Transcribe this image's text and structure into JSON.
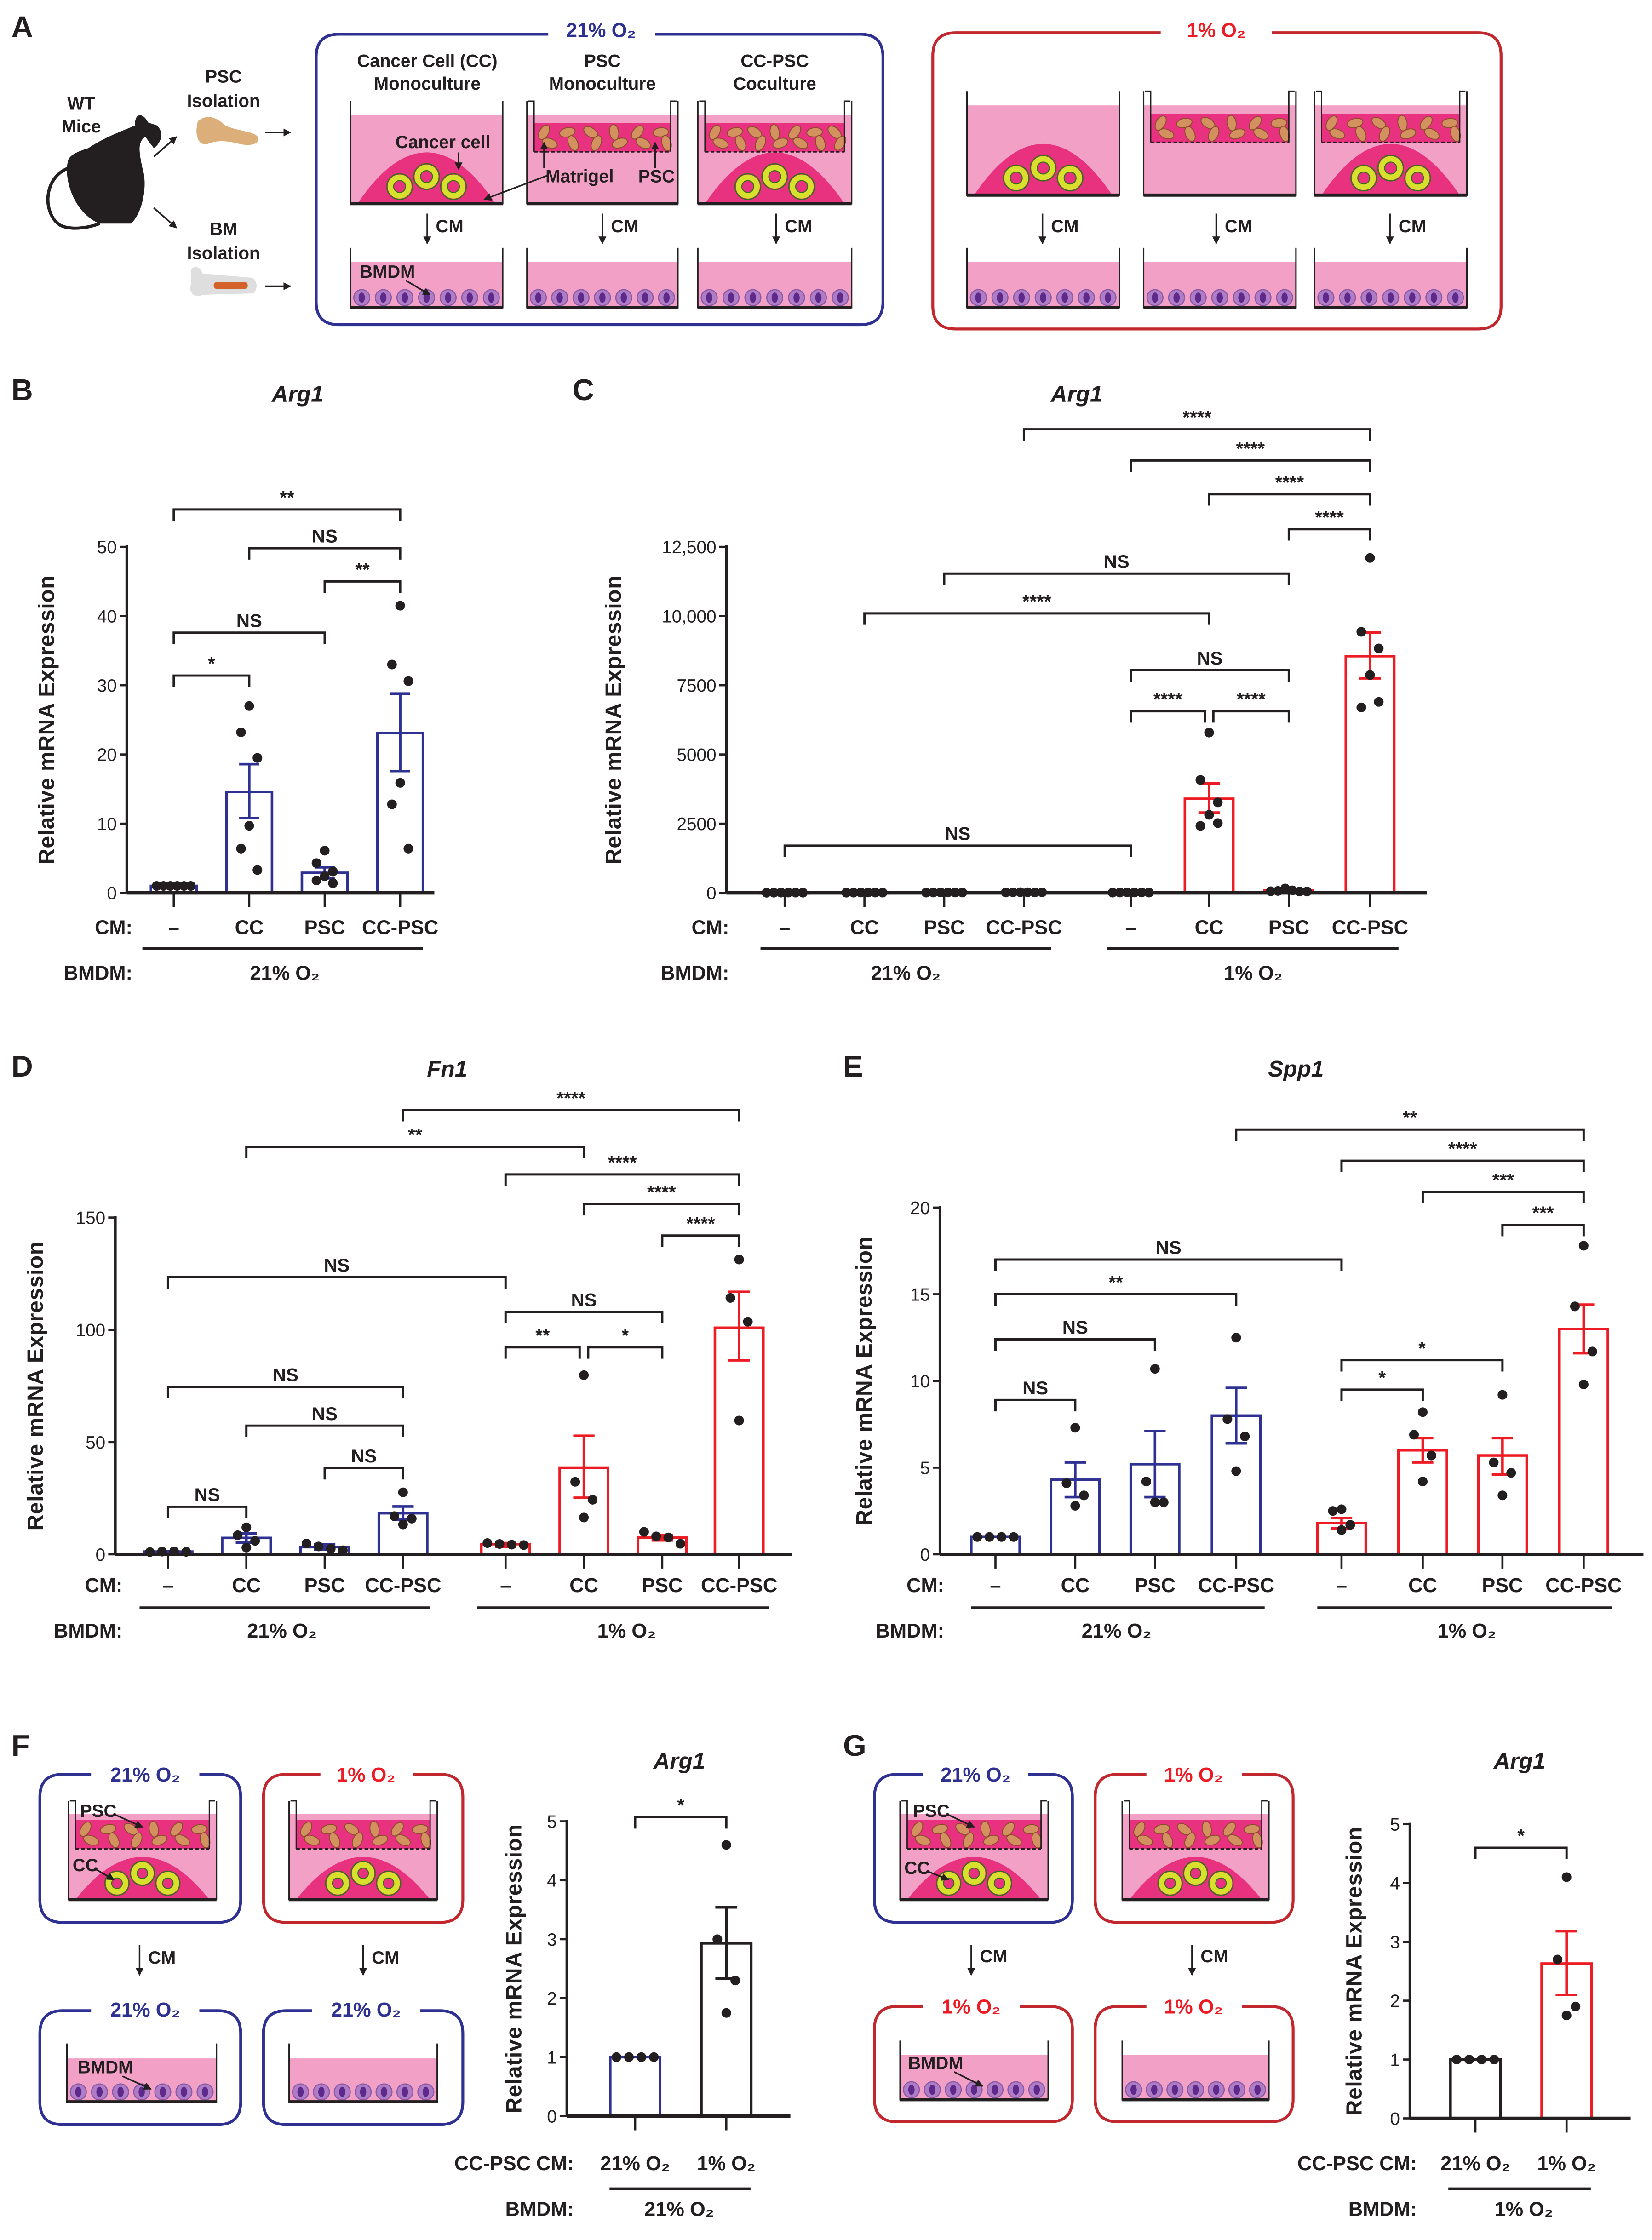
{
  "colors": {
    "normoxia": "#2e3192",
    "hypoxia": "#ed1c24",
    "hypoxia_box": "#c1272d",
    "medium": "#f3a0c6",
    "matrigel": "#e8317f",
    "organoid_ring": "#d7e02c",
    "organoid_edge": "#3a6b1f",
    "psc_cell": "#d3915f",
    "bmdm_cell": "#b07cc6",
    "bmdm_nucleus": "#5d2a8c"
  },
  "panel_a": {
    "label": "A",
    "mouse_label": [
      "WT",
      "Mice"
    ],
    "psc_isolation": [
      "PSC",
      "Isolation"
    ],
    "bm_isolation": [
      "BM",
      "Isolation"
    ],
    "normoxia_title": "21% O₂",
    "hypoxia_title": "1% O₂",
    "columns": [
      [
        "Cancer Cell (CC)",
        "Monoculture"
      ],
      [
        "PSC",
        "Monoculture"
      ],
      [
        "CC-PSC",
        "Coculture"
      ]
    ],
    "cm_label": "CM",
    "annotations": {
      "cancer_cell": "Cancer cell",
      "matrigel": "Matrigel",
      "psc": "PSC",
      "bmdm": "BMDM"
    }
  },
  "panel_f": {
    "label": "F",
    "top_titles": [
      "21% O₂",
      "1% O₂"
    ],
    "bottom_titles": [
      "21% O₂",
      "21% O₂"
    ],
    "cm_label": "CM",
    "annotations": {
      "psc": "PSC",
      "cc": "CC",
      "bmdm": "BMDM"
    }
  },
  "panel_g": {
    "label": "G",
    "top_titles": [
      "21% O₂",
      "1% O₂"
    ],
    "bottom_titles": [
      "1% O₂",
      "1% O₂"
    ],
    "cm_label": "CM",
    "annotations": {
      "psc": "PSC",
      "cc": "CC",
      "bmdm": "BMDM"
    }
  },
  "chart_data": [
    {
      "label": "B",
      "type": "bar",
      "title": "Arg1",
      "ylabel": "Relative mRNA Expression",
      "ylim": [
        0,
        50
      ],
      "yticks": [
        0,
        10,
        20,
        30,
        40,
        50
      ],
      "ytick_labels": [
        "0",
        "10",
        "20",
        "30",
        "40",
        "50"
      ],
      "row_labels": [
        "CM:",
        "BMDM:"
      ],
      "categories": [
        "–",
        "CC",
        "PSC",
        "CC-PSC"
      ],
      "groups": [
        "21% O₂"
      ],
      "bar_colors": [
        "#2e3192",
        "#2e3192",
        "#2e3192",
        "#2e3192"
      ],
      "values": [
        1.0,
        14.6,
        2.9,
        23.1
      ],
      "sem": [
        [
          1.0,
          1.0
        ],
        [
          10.8,
          18.6
        ],
        [
          2.1,
          3.7
        ],
        [
          17.6,
          28.8
        ]
      ],
      "points": [
        [
          1,
          1,
          1,
          1,
          1,
          1
        ],
        [
          27.0,
          23.2,
          19.5,
          9.7,
          6.4,
          3.3
        ],
        [
          6.1,
          4.3,
          3.1,
          2.4,
          1.8,
          1.4
        ],
        [
          41.5,
          33.0,
          30.6,
          15.9,
          12.8,
          6.4
        ]
      ],
      "comparisons": [
        {
          "pair": [
            0,
            3
          ],
          "label": "**"
        },
        {
          "pair": [
            1,
            3
          ],
          "label": "NS"
        },
        {
          "pair": [
            2,
            3
          ],
          "label": "**"
        },
        {
          "pair": [
            0,
            2
          ],
          "label": "NS"
        },
        {
          "pair": [
            0,
            1
          ],
          "label": "*"
        }
      ]
    },
    {
      "label": "C",
      "type": "bar",
      "title": "Arg1",
      "ylabel": "Relative mRNA Expression",
      "ylim": [
        0,
        12500
      ],
      "yticks": [
        0,
        2500,
        5000,
        7500,
        10000,
        12500
      ],
      "ytick_labels": [
        "0",
        "2500",
        "5000",
        "7500",
        "10,000",
        "12,500"
      ],
      "row_labels": [
        "CM:",
        "BMDM:"
      ],
      "categories": [
        "–",
        "CC",
        "PSC",
        "CC-PSC",
        "–",
        "CC",
        "PSC",
        "CC-PSC"
      ],
      "groups": [
        "21% O₂",
        "1% O₂"
      ],
      "bar_colors": [
        "#2e3192",
        "#2e3192",
        "#2e3192",
        "#2e3192",
        "#ed1c24",
        "#ed1c24",
        "#ed1c24",
        "#ed1c24"
      ],
      "values": [
        10,
        12,
        15,
        20,
        15,
        3400,
        80,
        8550
      ],
      "sem": [
        [
          10,
          10
        ],
        [
          12,
          12
        ],
        [
          15,
          15
        ],
        [
          20,
          20
        ],
        [
          15,
          15
        ],
        [
          2900,
          3950
        ],
        [
          60,
          100
        ],
        [
          7750,
          9400
        ]
      ],
      "points": [
        [
          5,
          8,
          10,
          12,
          10,
          8
        ],
        [
          8,
          10,
          14,
          15,
          12,
          10
        ],
        [
          10,
          14,
          18,
          16,
          15,
          14
        ],
        [
          15,
          20,
          25,
          22,
          18,
          20
        ],
        [
          10,
          14,
          20,
          15,
          16,
          12
        ],
        [
          5790,
          4080,
          3270,
          2820,
          2420,
          2520
        ],
        [
          60,
          70,
          160,
          90,
          50,
          50
        ],
        [
          12100,
          9430,
          8830,
          7870,
          6700,
          6900
        ]
      ],
      "comparisons": [
        {
          "pair": [
            3,
            7
          ],
          "label": "****"
        },
        {
          "pair": [
            4,
            7
          ],
          "label": "****"
        },
        {
          "pair": [
            5,
            7
          ],
          "label": "****"
        },
        {
          "pair": [
            6,
            7
          ],
          "label": "****"
        },
        {
          "pair": [
            2,
            6
          ],
          "label": "NS"
        },
        {
          "pair": [
            1,
            5
          ],
          "label": "****"
        },
        {
          "pair": [
            4,
            6
          ],
          "label": "NS"
        },
        {
          "pair": [
            4,
            5
          ],
          "label": "****"
        },
        {
          "pair": [
            5,
            6
          ],
          "label": "****"
        },
        {
          "pair": [
            0,
            4
          ],
          "label": "NS"
        }
      ]
    },
    {
      "label": "D",
      "type": "bar",
      "title": "Fn1",
      "ylabel": "Relative mRNA Expression",
      "ylim": [
        0,
        150
      ],
      "yticks": [
        0,
        50,
        100,
        150
      ],
      "ytick_labels": [
        "0",
        "50",
        "100",
        "150"
      ],
      "row_labels": [
        "CM:",
        "BMDM:"
      ],
      "categories": [
        "–",
        "CC",
        "PSC",
        "CC-PSC",
        "–",
        "CC",
        "PSC",
        "CC-PSC"
      ],
      "groups": [
        "21% O₂",
        "1% O₂"
      ],
      "bar_colors": [
        "#2e3192",
        "#2e3192",
        "#2e3192",
        "#2e3192",
        "#ed1c24",
        "#ed1c24",
        "#ed1c24",
        "#ed1c24"
      ],
      "values": [
        1.2,
        7.3,
        3.2,
        18.3,
        4.5,
        38.6,
        7.4,
        100.9
      ],
      "sem": [
        [
          1.0,
          1.4
        ],
        [
          5.2,
          9.3
        ],
        [
          2.2,
          4.4
        ],
        [
          15.4,
          21.3
        ],
        [
          3.4,
          5.0
        ],
        [
          25.2,
          52.8
        ],
        [
          6.2,
          8.6
        ],
        [
          86.4,
          116.9
        ]
      ],
      "points": [
        [
          1.0,
          1.2,
          1.3,
          1.1
        ],
        [
          12.0,
          8.5,
          6.0,
          3.0
        ],
        [
          4.8,
          3.5,
          2.5,
          1.8
        ],
        [
          27.6,
          17.0,
          15.9,
          13.3
        ],
        [
          5.0,
          4.6,
          4.3,
          4.1
        ],
        [
          79.8,
          32.3,
          24.3,
          16.4
        ],
        [
          10.0,
          8.0,
          7.5,
          4.7
        ],
        [
          131.3,
          114.2,
          103.6,
          59.6
        ]
      ],
      "comparisons": [
        {
          "pair": [
            3,
            7
          ],
          "label": "****"
        },
        {
          "pair": [
            1,
            5
          ],
          "label": "**"
        },
        {
          "pair": [
            4,
            7
          ],
          "label": "****"
        },
        {
          "pair": [
            5,
            7
          ],
          "label": "****"
        },
        {
          "pair": [
            6,
            7
          ],
          "label": "****"
        },
        {
          "pair": [
            0,
            4
          ],
          "label": "NS"
        },
        {
          "pair": [
            4,
            6
          ],
          "label": "NS"
        },
        {
          "pair": [
            4,
            5
          ],
          "label": "**"
        },
        {
          "pair": [
            5,
            6
          ],
          "label": "*"
        },
        {
          "pair": [
            0,
            3
          ],
          "label": "NS"
        },
        {
          "pair": [
            1,
            3
          ],
          "label": "NS"
        },
        {
          "pair": [
            2,
            3
          ],
          "label": "NS"
        },
        {
          "pair": [
            0,
            1
          ],
          "label": "NS"
        }
      ]
    },
    {
      "label": "E",
      "type": "bar",
      "title": "Spp1",
      "ylabel": "Relative mRNA Expression",
      "ylim": [
        0,
        20
      ],
      "yticks": [
        0,
        5,
        10,
        15,
        20
      ],
      "ytick_labels": [
        "0",
        "5",
        "10",
        "15",
        "20"
      ],
      "row_labels": [
        "CM:",
        "BMDM:"
      ],
      "categories": [
        "–",
        "CC",
        "PSC",
        "CC-PSC",
        "–",
        "CC",
        "PSC",
        "CC-PSC"
      ],
      "groups": [
        "21% O₂",
        "1% O₂"
      ],
      "bar_colors": [
        "#2e3192",
        "#2e3192",
        "#2e3192",
        "#2e3192",
        "#ed1c24",
        "#ed1c24",
        "#ed1c24",
        "#ed1c24"
      ],
      "values": [
        1.0,
        4.3,
        5.2,
        8.0,
        1.8,
        6.0,
        5.7,
        13.0
      ],
      "sem": [
        [
          1.0,
          1.0
        ],
        [
          3.3,
          5.3
        ],
        [
          3.3,
          7.1
        ],
        [
          6.4,
          9.6
        ],
        [
          1.5,
          2.1
        ],
        [
          5.3,
          6.7
        ],
        [
          4.6,
          6.7
        ],
        [
          11.6,
          14.4
        ]
      ],
      "points": [
        [
          1,
          1,
          1,
          1
        ],
        [
          7.3,
          4.1,
          3.4,
          2.8
        ],
        [
          10.7,
          4.2,
          3.0,
          3.0
        ],
        [
          12.5,
          7.8,
          6.8,
          4.8
        ],
        [
          2.6,
          2.5,
          1.7,
          1.4
        ],
        [
          8.2,
          6.9,
          5.7,
          4.2
        ],
        [
          9.2,
          5.3,
          4.7,
          3.4
        ],
        [
          17.8,
          14.3,
          11.7,
          9.8
        ]
      ],
      "comparisons": [
        {
          "pair": [
            3,
            7
          ],
          "label": "**"
        },
        {
          "pair": [
            4,
            7
          ],
          "label": "****"
        },
        {
          "pair": [
            5,
            7
          ],
          "label": "***"
        },
        {
          "pair": [
            6,
            7
          ],
          "label": "***"
        },
        {
          "pair": [
            0,
            4
          ],
          "label": "NS"
        },
        {
          "pair": [
            0,
            3
          ],
          "label": "**"
        },
        {
          "pair": [
            0,
            2
          ],
          "label": "NS"
        },
        {
          "pair": [
            4,
            6
          ],
          "label": "*"
        },
        {
          "pair": [
            0,
            1
          ],
          "label": "NS"
        },
        {
          "pair": [
            4,
            5
          ],
          "label": "*"
        }
      ]
    },
    {
      "label": "F",
      "type": "bar",
      "title": "Arg1",
      "ylabel": "Relative mRNA Expression",
      "ylim": [
        0,
        5
      ],
      "yticks": [
        0,
        1,
        2,
        3,
        4,
        5
      ],
      "ytick_labels": [
        "0",
        "1",
        "2",
        "3",
        "4",
        "5"
      ],
      "row_labels": [
        "CC-PSC CM:",
        "BMDM:"
      ],
      "categories": [
        "21% O₂",
        "1% O₂"
      ],
      "groups": [
        "21% O₂"
      ],
      "bar_colors": [
        "#2e3192",
        "#231f20"
      ],
      "values": [
        1.0,
        2.93
      ],
      "sem": [
        [
          1.0,
          1.0
        ],
        [
          2.33,
          3.54
        ]
      ],
      "points": [
        [
          1,
          1,
          1,
          1
        ],
        [
          4.6,
          3.0,
          2.3,
          1.75
        ]
      ],
      "comparisons": [
        {
          "pair": [
            0,
            1
          ],
          "label": "*"
        }
      ]
    },
    {
      "label": "G",
      "type": "bar",
      "title": "Arg1",
      "ylabel": "Relative mRNA Expression",
      "ylim": [
        0,
        5
      ],
      "yticks": [
        0,
        1,
        2,
        3,
        4,
        5
      ],
      "ytick_labels": [
        "0",
        "1",
        "2",
        "3",
        "4",
        "5"
      ],
      "row_labels": [
        "CC-PSC CM:",
        "BMDM:"
      ],
      "categories": [
        "21% O₂",
        "1% O₂"
      ],
      "groups": [
        "1% O₂"
      ],
      "bar_colors": [
        "#231f20",
        "#ed1c24"
      ],
      "values": [
        1.0,
        2.63
      ],
      "sem": [
        [
          1.0,
          1.0
        ],
        [
          2.1,
          3.18
        ]
      ],
      "points": [
        [
          1,
          1,
          1,
          1
        ],
        [
          4.1,
          2.7,
          1.9,
          1.75
        ]
      ],
      "comparisons": [
        {
          "pair": [
            0,
            1
          ],
          "label": "*"
        }
      ]
    }
  ]
}
